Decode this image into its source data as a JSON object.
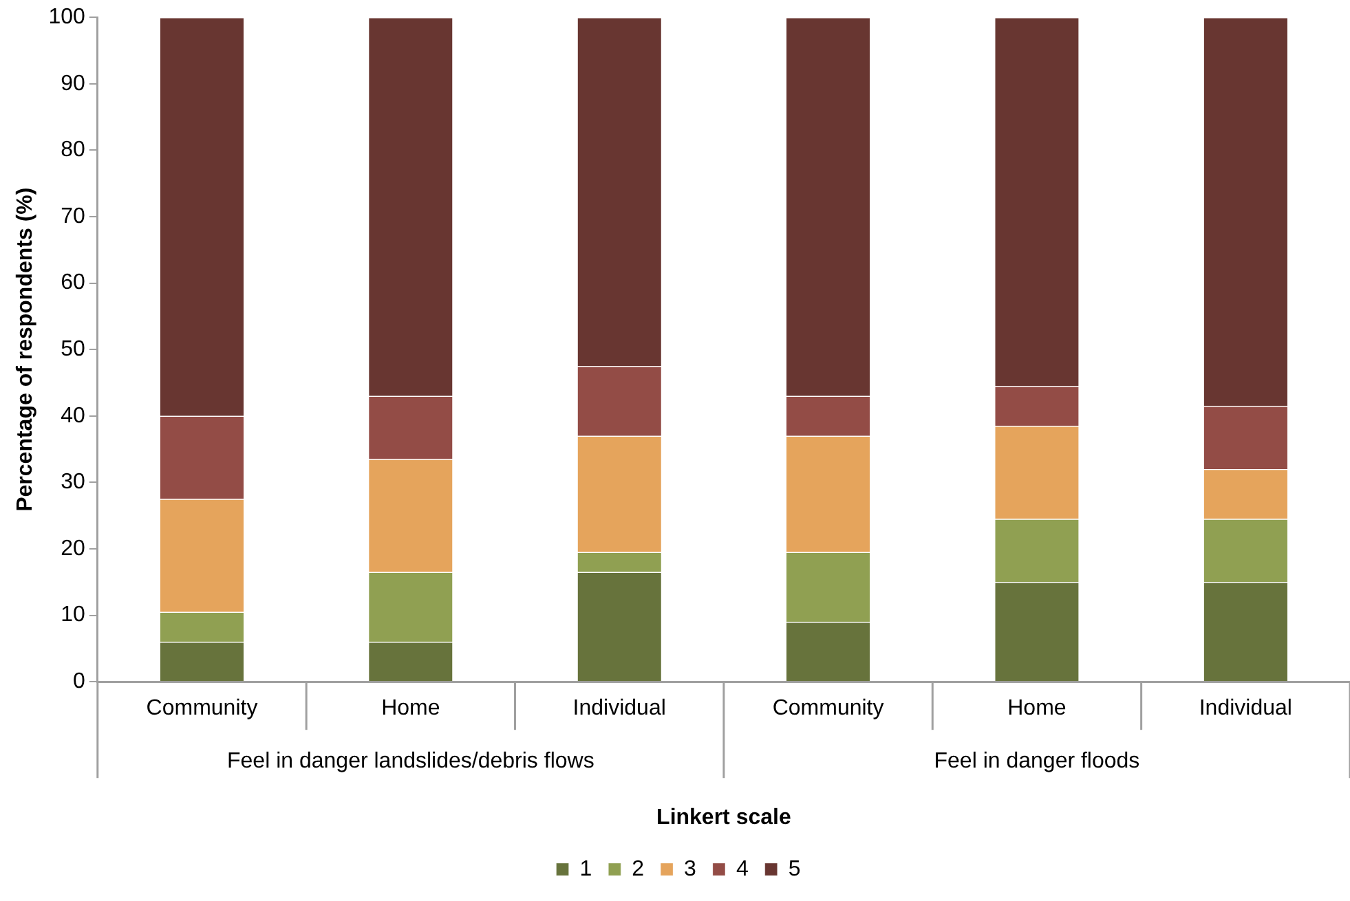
{
  "chart_data": {
    "type": "bar",
    "stacked": true,
    "xlabel": "Linkert scale",
    "ylabel": "Percentage of respondents (%)",
    "categories": [
      "Community",
      "Home",
      "Individual",
      "Community",
      "Home",
      "Individual"
    ],
    "annotations": [
      "Feel in danger landslides/debris flows",
      "Feel in danger floods"
    ],
    "series": [
      {
        "name": "1",
        "color": "#67733c",
        "values": [
          6,
          6,
          16.5,
          9,
          15,
          15
        ]
      },
      {
        "name": "2",
        "color": "#90a052",
        "values": [
          4.5,
          10.5,
          3,
          10.5,
          9.5,
          9.5
        ]
      },
      {
        "name": "3",
        "color": "#e5a45c",
        "values": [
          17,
          17,
          17.5,
          17.5,
          14,
          7.5
        ]
      },
      {
        "name": "4",
        "color": "#934c46",
        "values": [
          12.5,
          9.5,
          10.5,
          6,
          6,
          9.5
        ]
      },
      {
        "name": "5",
        "color": "#683631",
        "values": [
          60,
          57,
          52.5,
          57,
          55.5,
          58.5
        ]
      }
    ],
    "ylim": [
      0,
      100
    ],
    "yticks": [
      0,
      10,
      20,
      30,
      40,
      50,
      60,
      70,
      80,
      90,
      100
    ],
    "grid": false,
    "legend": "bottom"
  }
}
